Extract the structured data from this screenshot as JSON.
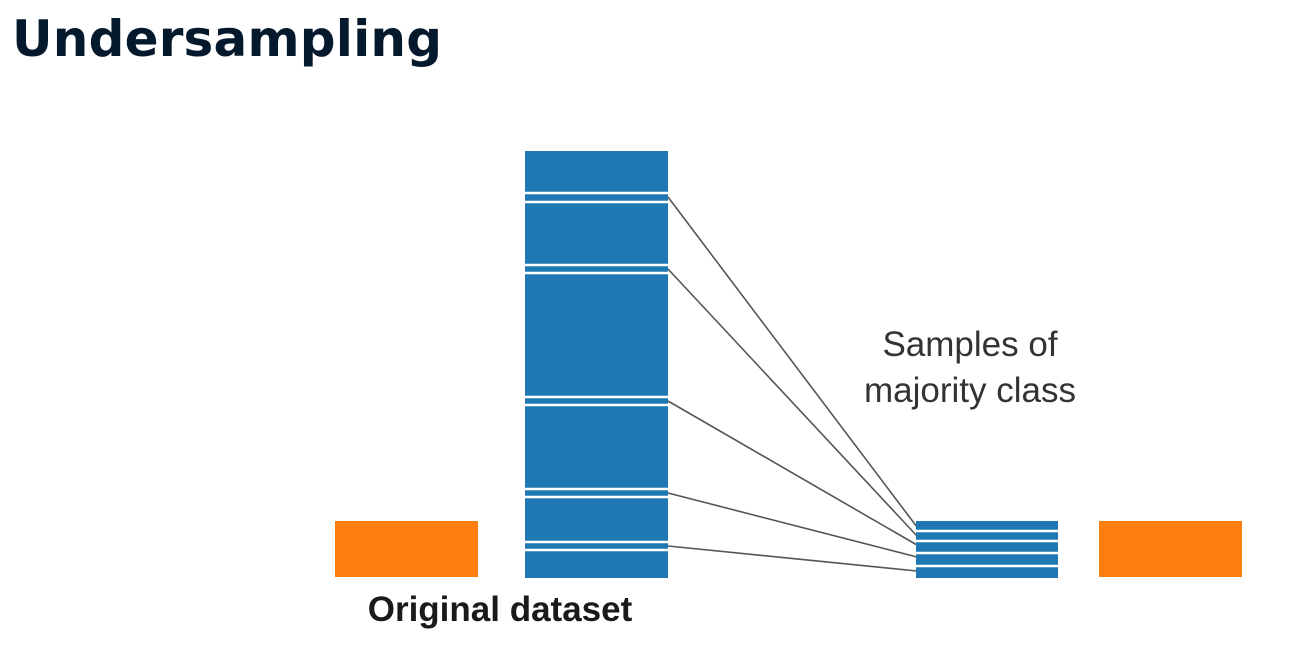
{
  "title": "Undersampling",
  "diagram": {
    "annotation_line1": "Samples of",
    "annotation_line2": "majority class",
    "original_label": "Original dataset",
    "colors": {
      "majority": "#1f77b4",
      "minority": "#ff7f0e",
      "separator": "#ffffff",
      "connector": "#555555"
    },
    "sampled_rows": 5
  }
}
